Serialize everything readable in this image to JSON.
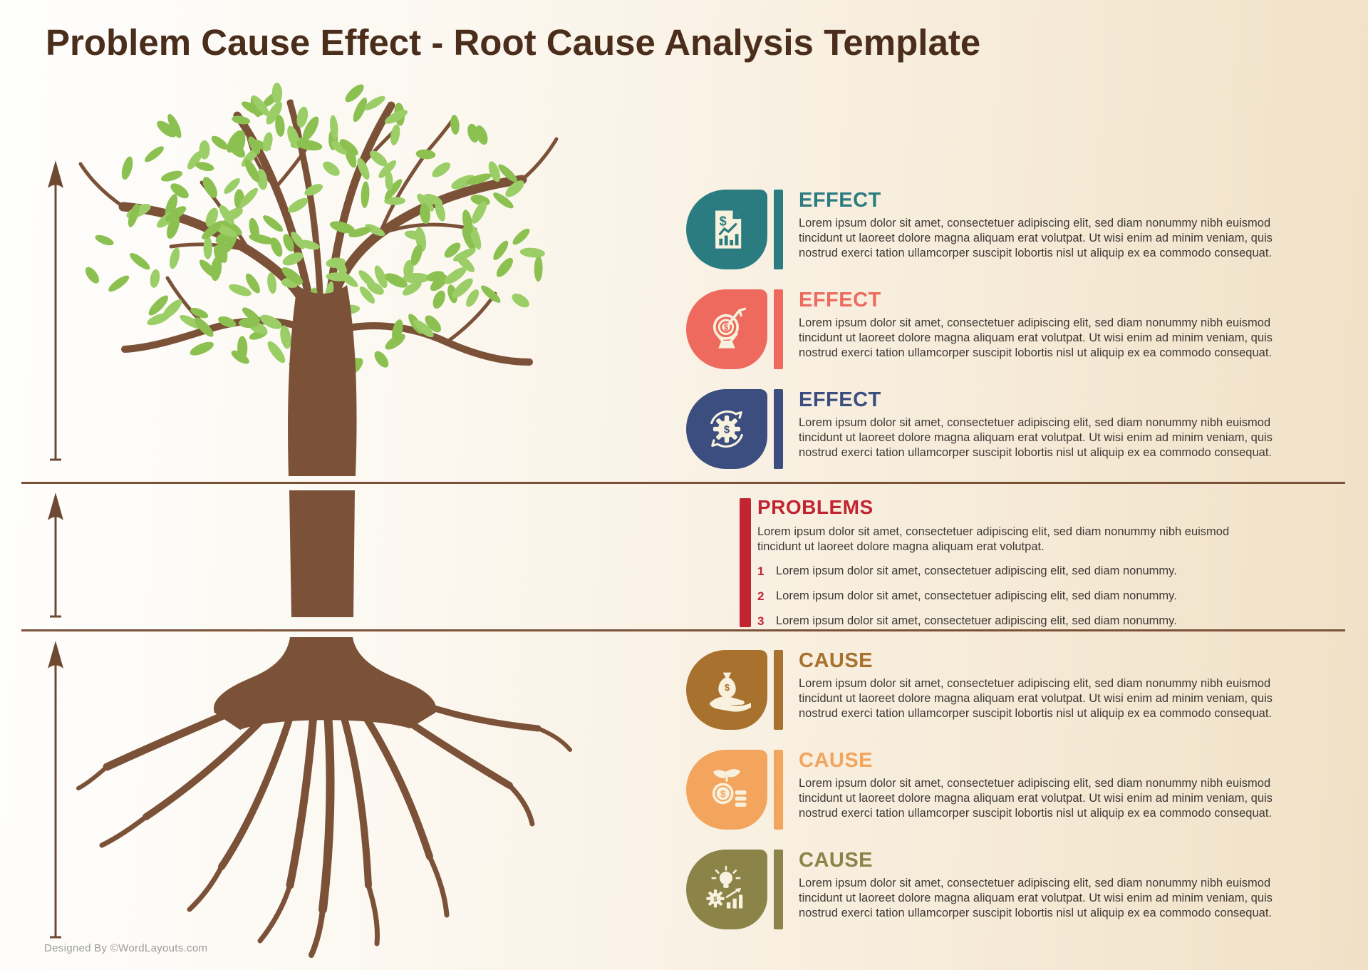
{
  "page": {
    "title": "Problem Cause Effect - Root Cause Analysis Template",
    "credit": "Designed By ©WordLayouts.com"
  },
  "colors": {
    "heading_brown": "#4a2d1b",
    "tree_brown": "#7b5138",
    "leaf_green": "#8cc152",
    "leaf_green_light": "#9bce66",
    "arrow_brown": "#6f4a33",
    "divider_brown": "#7b5138",
    "icon_cream": "#f8f1dd",
    "body_text": "#3e3935"
  },
  "lorem_long": "Lorem ipsum dolor sit amet, consectetuer adipiscing elit, sed diam nonummy nibh euismod tincidunt ut laoreet dolore magna aliquam erat volutpat. Ut wisi enim ad minim veniam, quis nostrud exerci tation ullamcorper suscipit lobortis nisl ut aliquip ex ea commodo consequat.",
  "effects": {
    "items": [
      {
        "label": "EFFECT",
        "color": "#2b7c80",
        "icon": "report-dollar-icon",
        "body": "Lorem ipsum dolor sit amet, consectetuer adipiscing elit, sed diam nonummy nibh euismod tincidunt ut laoreet dolore magna aliquam erat volutpat. Ut wisi enim ad minim veniam, quis nostrud exerci tation ullamcorper suscipit lobortis nisl ut aliquip ex ea commodo consequat."
      },
      {
        "label": "EFFECT",
        "color": "#ee6a5e",
        "icon": "target-dollar-icon",
        "body": "Lorem ipsum dolor sit amet, consectetuer adipiscing elit, sed diam nonummy nibh euismod tincidunt ut laoreet dolore magna aliquam erat volutpat. Ut wisi enim ad minim veniam, quis nostrud exerci tation ullamcorper suscipit lobortis nisl ut aliquip ex ea commodo consequat."
      },
      {
        "label": "EFFECT",
        "color": "#3c4e80",
        "icon": "gear-sync-dollar-icon",
        "body": "Lorem ipsum dolor sit amet, consectetuer adipiscing elit, sed diam nonummy nibh euismod tincidunt ut laoreet dolore magna aliquam erat volutpat. Ut wisi enim ad minim veniam, quis nostrud exerci tation ullamcorper suscipit lobortis nisl ut aliquip ex ea commodo consequat."
      }
    ]
  },
  "problems": {
    "label": "PROBLEMS",
    "color": "#c12532",
    "body": "Lorem ipsum dolor sit amet, consectetuer adipiscing elit, sed diam nonummy nibh euismod tincidunt ut laoreet dolore magna aliquam erat volutpat.",
    "items": [
      {
        "num": "1",
        "text": "Lorem ipsum dolor sit amet, consectetuer adipiscing elit, sed diam nonummy."
      },
      {
        "num": "2",
        "text": "Lorem ipsum dolor sit amet, consectetuer adipiscing elit, sed diam nonummy."
      },
      {
        "num": "3",
        "text": "Lorem ipsum dolor sit amet, consectetuer adipiscing elit, sed diam nonummy."
      }
    ]
  },
  "causes": {
    "items": [
      {
        "label": "CAUSE",
        "color": "#a9712e",
        "icon": "hand-moneybag-icon",
        "body": "Lorem ipsum dolor sit amet, consectetuer adipiscing elit, sed diam nonummy nibh euismod tincidunt ut laoreet dolore magna aliquam erat volutpat. Ut wisi enim ad minim veniam, quis nostrud exerci tation ullamcorper suscipit lobortis nisl ut aliquip ex ea commodo consequat."
      },
      {
        "label": "CAUSE",
        "color": "#f3a55e",
        "icon": "coin-plant-icon",
        "body": "Lorem ipsum dolor sit amet, consectetuer adipiscing elit, sed diam nonummy nibh euismod tincidunt ut laoreet dolore magna aliquam erat volutpat. Ut wisi enim ad minim veniam, quis nostrud exerci tation ullamcorper suscipit lobortis nisl ut aliquip ex ea commodo consequat."
      },
      {
        "label": "CAUSE",
        "color": "#8c8349",
        "icon": "idea-growth-icon",
        "body": "Lorem ipsum dolor sit amet, consectetuer adipiscing elit, sed diam nonummy nibh euismod tincidunt ut laoreet dolore magna aliquam erat volutpat. Ut wisi enim ad minim veniam, quis nostrud exerci tation ullamcorper suscipit lobortis nisl ut aliquip ex ea commodo consequat."
      }
    ]
  }
}
